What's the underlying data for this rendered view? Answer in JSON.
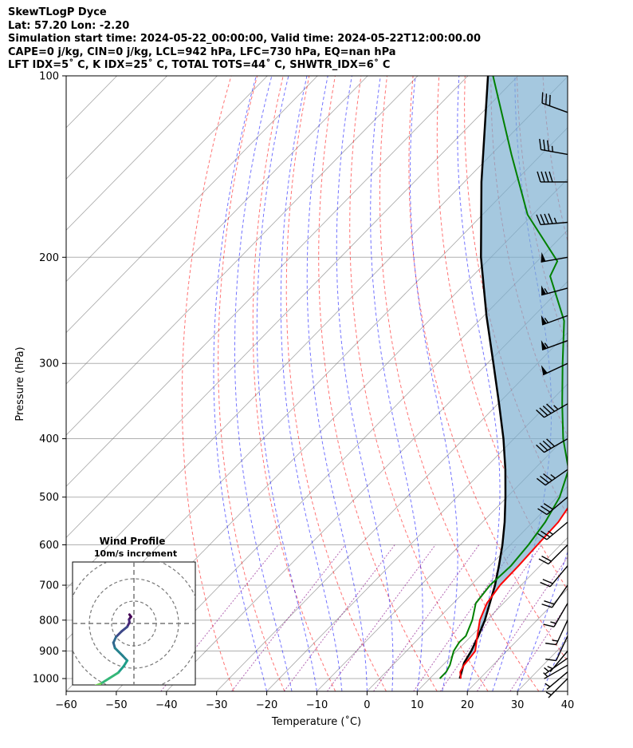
{
  "header": {
    "line1": "SkewTLogP Dyce",
    "line2": "Lat: 57.20   Lon: -2.20",
    "line3": "Simulation start time: 2024-05-22_00:00:00, Valid time: 2024-05-22T12:00:00.00",
    "line4": "CAPE=0 j/kg, CIN=0 j/kg, LCL=942 hPa, LFC=730 hPa, EQ=nan hPa",
    "line5": "LFT IDX=5˚ C, K IDX=25˚ C, TOTAL TOTS=44˚ C, SHWTR_IDX=6˚ C"
  },
  "chart_data": {
    "type": "skewt",
    "xlabel": "Temperature (˚C)",
    "ylabel": "Pressure (hPa)",
    "xlim": [
      -60,
      40
    ],
    "ylim_hpa": [
      1050,
      100
    ],
    "x_ticks": [
      -60,
      -50,
      -40,
      -30,
      -20,
      -10,
      0,
      10,
      20,
      30,
      40
    ],
    "x_tick_labels": [
      "−60",
      "−50",
      "−40",
      "−30",
      "−20",
      "−10",
      "0",
      "10",
      "20",
      "30",
      "40"
    ],
    "y_ticks": [
      100,
      200,
      300,
      400,
      500,
      600,
      700,
      800,
      900,
      1000
    ],
    "y_tick_labels": [
      "100",
      "200",
      "300",
      "400",
      "500",
      "600",
      "700",
      "800",
      "900",
      "1000"
    ],
    "temperature": {
      "name": "Temperature",
      "color": "#ff0000",
      "points": [
        [
          1000,
          16.2
        ],
        [
          975,
          14.8
        ],
        [
          950,
          14.2
        ],
        [
          925,
          14.0
        ],
        [
          900,
          13.7
        ],
        [
          850,
          11.2
        ],
        [
          800,
          8.6
        ],
        [
          750,
          6.7
        ],
        [
          700,
          5.8
        ],
        [
          650,
          5.7
        ],
        [
          600,
          5.4
        ],
        [
          550,
          5.1
        ],
        [
          500,
          3.6
        ],
        [
          450,
          0.0
        ],
        [
          400,
          -4.9
        ],
        [
          350,
          -10.8
        ],
        [
          300,
          -17.1
        ],
        [
          250,
          -26.9
        ],
        [
          216,
          -36.5
        ],
        [
          203,
          -42.3
        ],
        [
          180,
          -42.2
        ],
        [
          160,
          -43.1
        ],
        [
          145,
          -45.0
        ],
        [
          130,
          -49.0
        ],
        [
          115,
          -54.0
        ],
        [
          100,
          -58.5
        ]
      ]
    },
    "dewpoint": {
      "name": "Dewpoint",
      "color": "#008000",
      "points": [
        [
          1000,
          12.0
        ],
        [
          975,
          12.0
        ],
        [
          950,
          11.4
        ],
        [
          900,
          9.4
        ],
        [
          870,
          8.8
        ],
        [
          850,
          8.9
        ],
        [
          800,
          7.1
        ],
        [
          750,
          4.5
        ],
        [
          700,
          3.8
        ],
        [
          650,
          4.2
        ],
        [
          600,
          3.6
        ],
        [
          550,
          2.5
        ],
        [
          500,
          0.5
        ],
        [
          450,
          -3.1
        ],
        [
          400,
          -10.2
        ],
        [
          350,
          -17.2
        ],
        [
          300,
          -25.0
        ],
        [
          255,
          -33.0
        ],
        [
          215,
          -44.5
        ],
        [
          203,
          -46.0
        ],
        [
          170,
          -61.0
        ],
        [
          135,
          -76.0
        ],
        [
          100,
          -95.0
        ]
      ]
    },
    "parcel": {
      "name": "Parcel profile",
      "color": "#000000",
      "points": [
        [
          1000,
          16.0
        ],
        [
          942,
          13.8
        ],
        [
          900,
          12.9
        ],
        [
          850,
          11.4
        ],
        [
          800,
          9.6
        ],
        [
          750,
          7.3
        ],
        [
          700,
          4.8
        ],
        [
          650,
          1.8
        ],
        [
          600,
          -1.6
        ],
        [
          550,
          -5.6
        ],
        [
          500,
          -10.3
        ],
        [
          450,
          -15.7
        ],
        [
          400,
          -22.1
        ],
        [
          350,
          -29.8
        ],
        [
          300,
          -38.8
        ],
        [
          250,
          -49.5
        ],
        [
          200,
          -62.0
        ],
        [
          150,
          -76.6
        ],
        [
          100,
          -96.0
        ]
      ]
    },
    "wind_profile": {
      "title": "Wind Profile",
      "subtitle": "10m/s increment",
      "hodograph_ms": [
        [
          2,
          -4
        ],
        [
          1.3,
          -3
        ],
        [
          2.2,
          -1.8
        ],
        [
          2,
          -0.5
        ],
        [
          3,
          1.5
        ],
        [
          5.5,
          3.5
        ],
        [
          8,
          6
        ],
        [
          9.2,
          8.6
        ],
        [
          8.5,
          11
        ],
        [
          5,
          14.5
        ],
        [
          3,
          16.6
        ],
        [
          4.5,
          19
        ],
        [
          7,
          22
        ],
        [
          11,
          24.5
        ],
        [
          15,
          27
        ],
        [
          18,
          28.2
        ],
        [
          20,
          28.3
        ],
        [
          22.5,
          29.8
        ],
        [
          27.5,
          30
        ],
        [
          33,
          31
        ]
      ],
      "ring_speeds_ms": [
        10,
        20,
        30
      ]
    },
    "wind_barbs": [
      {
        "p": 1000,
        "dir_deg": 225,
        "speed_kt": 8
      },
      {
        "p": 975,
        "dir_deg": 230,
        "speed_kt": 8
      },
      {
        "p": 950,
        "dir_deg": 240,
        "speed_kt": 7
      },
      {
        "p": 925,
        "dir_deg": 235,
        "speed_kt": 6
      },
      {
        "p": 900,
        "dir_deg": 220,
        "speed_kt": 6
      },
      {
        "p": 850,
        "dir_deg": 205,
        "speed_kt": 14
      },
      {
        "p": 800,
        "dir_deg": 205,
        "speed_kt": 18
      },
      {
        "p": 750,
        "dir_deg": 210,
        "speed_kt": 19
      },
      {
        "p": 700,
        "dir_deg": 215,
        "speed_kt": 22
      },
      {
        "p": 650,
        "dir_deg": 220,
        "speed_kt": 20
      },
      {
        "p": 600,
        "dir_deg": 225,
        "speed_kt": 20
      },
      {
        "p": 550,
        "dir_deg": 230,
        "speed_kt": 25
      },
      {
        "p": 500,
        "dir_deg": 230,
        "speed_kt": 30
      },
      {
        "p": 450,
        "dir_deg": 235,
        "speed_kt": 35
      },
      {
        "p": 400,
        "dir_deg": 240,
        "speed_kt": 40
      },
      {
        "p": 350,
        "dir_deg": 240,
        "speed_kt": 45
      },
      {
        "p": 300,
        "dir_deg": 245,
        "speed_kt": 50
      },
      {
        "p": 275,
        "dir_deg": 250,
        "speed_kt": 55
      },
      {
        "p": 250,
        "dir_deg": 250,
        "speed_kt": 55
      },
      {
        "p": 225,
        "dir_deg": 255,
        "speed_kt": 55
      },
      {
        "p": 200,
        "dir_deg": 260,
        "speed_kt": 50
      },
      {
        "p": 175,
        "dir_deg": 265,
        "speed_kt": 45
      },
      {
        "p": 150,
        "dir_deg": 270,
        "speed_kt": 40
      },
      {
        "p": 135,
        "dir_deg": 280,
        "speed_kt": 35
      },
      {
        "p": 115,
        "dir_deg": 290,
        "speed_kt": 30
      }
    ],
    "colors": {
      "dry_adiabats": "#ff0000",
      "moist_adiabats": "#0000ff",
      "mixing_ratio": "#800080",
      "isotherms": "#808080",
      "cape_fill": "#7aaed0"
    }
  }
}
